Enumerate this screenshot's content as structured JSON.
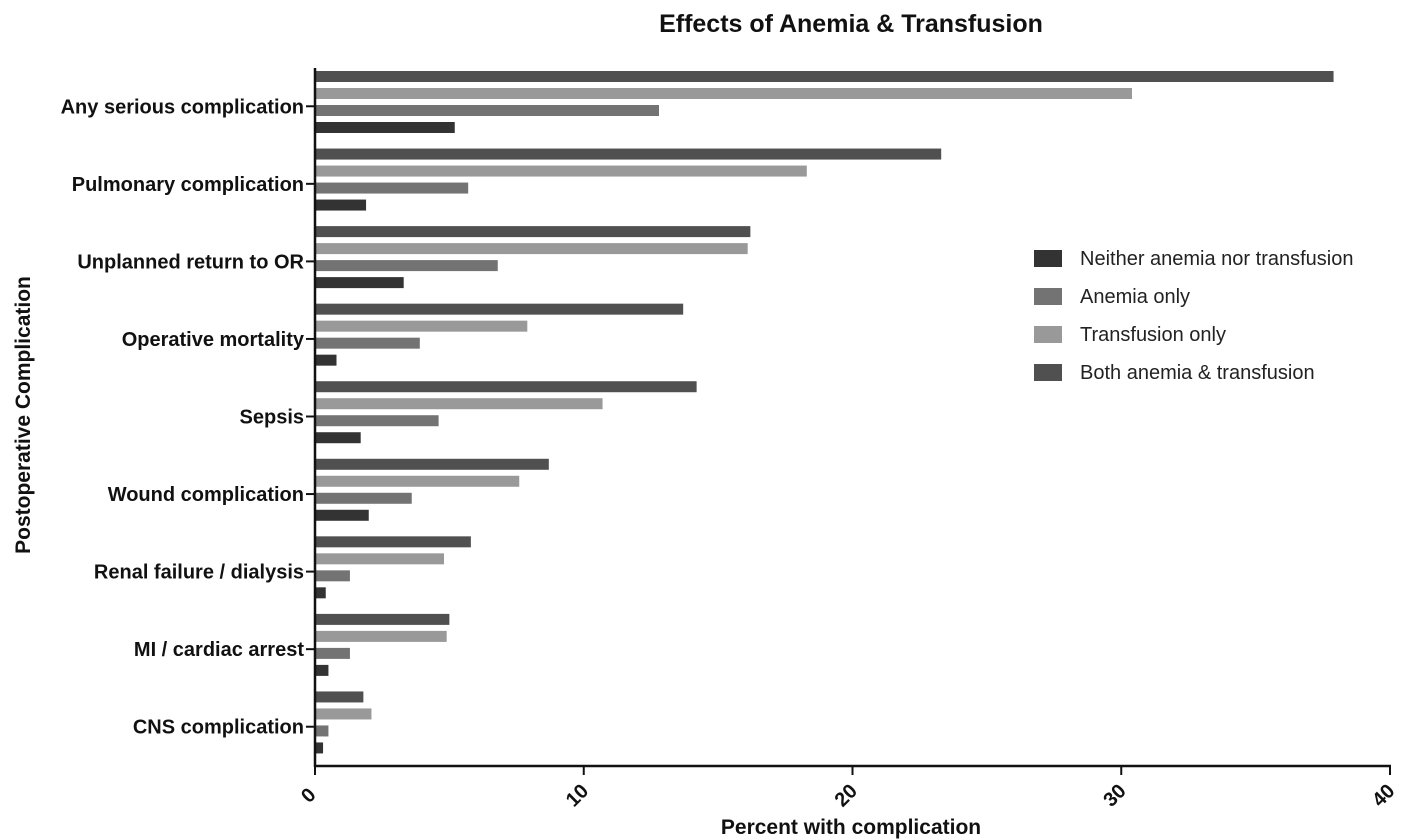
{
  "chart_data": {
    "type": "bar",
    "orientation": "horizontal",
    "title": "Effects of Anemia & Transfusion",
    "xlabel": "Percent with complication",
    "ylabel": "Postoperative Complication",
    "xlim": [
      0,
      40
    ],
    "xticks": [
      0,
      10,
      20,
      30,
      40
    ],
    "grid": false,
    "legend_position": "right",
    "categories": [
      "Any serious complication",
      "Pulmonary complication",
      "Unplanned return to OR",
      "Operative mortality",
      "Sepsis",
      "Wound complication",
      "Renal failure / dialysis",
      "MI / cardiac arrest",
      "CNS complication"
    ],
    "series": [
      {
        "name": "Neither anemia nor transfusion",
        "color": "#333333",
        "values": [
          5.2,
          1.9,
          3.3,
          0.8,
          1.7,
          2.0,
          0.4,
          0.5,
          0.3
        ]
      },
      {
        "name": "Anemia only",
        "color": "#737373",
        "values": [
          12.8,
          5.7,
          6.8,
          3.9,
          4.6,
          3.6,
          1.3,
          1.3,
          0.5
        ]
      },
      {
        "name": "Transfusion only",
        "color": "#999999",
        "values": [
          30.4,
          18.3,
          16.1,
          7.9,
          10.7,
          7.6,
          4.8,
          4.9,
          2.1
        ]
      },
      {
        "name": "Both anemia & transfusion",
        "color": "#505050",
        "values": [
          37.9,
          23.3,
          16.2,
          13.7,
          14.2,
          8.7,
          5.8,
          5.0,
          1.8
        ]
      }
    ]
  }
}
